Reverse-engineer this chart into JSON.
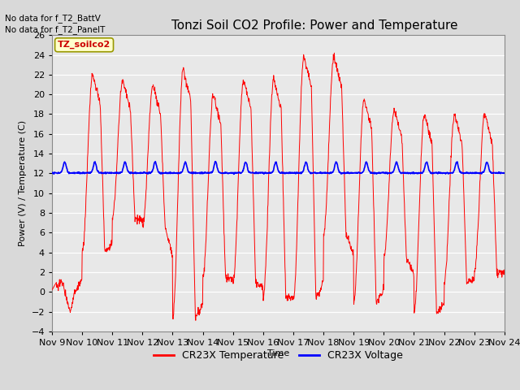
{
  "title": "Tonzi Soil CO2 Profile: Power and Temperature",
  "ylabel": "Power (V) / Temperature (C)",
  "xlabel": "Time",
  "no_data_text_1": "No data for f_T2_BattV",
  "no_data_text_2": "No data for f_T2_PanelT",
  "legend_box_label": "TZ_soilco2",
  "legend_items": [
    "CR23X Temperature",
    "CR23X Voltage"
  ],
  "legend_colors": [
    "#ff0000",
    "#0000ff"
  ],
  "ylim": [
    -4,
    26
  ],
  "yticks": [
    -4,
    -2,
    0,
    2,
    4,
    6,
    8,
    10,
    12,
    14,
    16,
    18,
    20,
    22,
    24,
    26
  ],
  "x_tick_labels": [
    "Nov 9",
    "Nov 10",
    "Nov 11",
    "Nov 12",
    "Nov 13",
    "Nov 14",
    "Nov 15",
    "Nov 16",
    "Nov 17",
    "Nov 18",
    "Nov 19",
    "Nov 20",
    "Nov 21",
    "Nov 22",
    "Nov 23",
    "Nov 24"
  ],
  "background_color": "#d9d9d9",
  "plot_bg_color": "#e8e8e8",
  "grid_color": "#ffffff",
  "title_fontsize": 11,
  "label_fontsize": 8,
  "tick_fontsize": 8
}
